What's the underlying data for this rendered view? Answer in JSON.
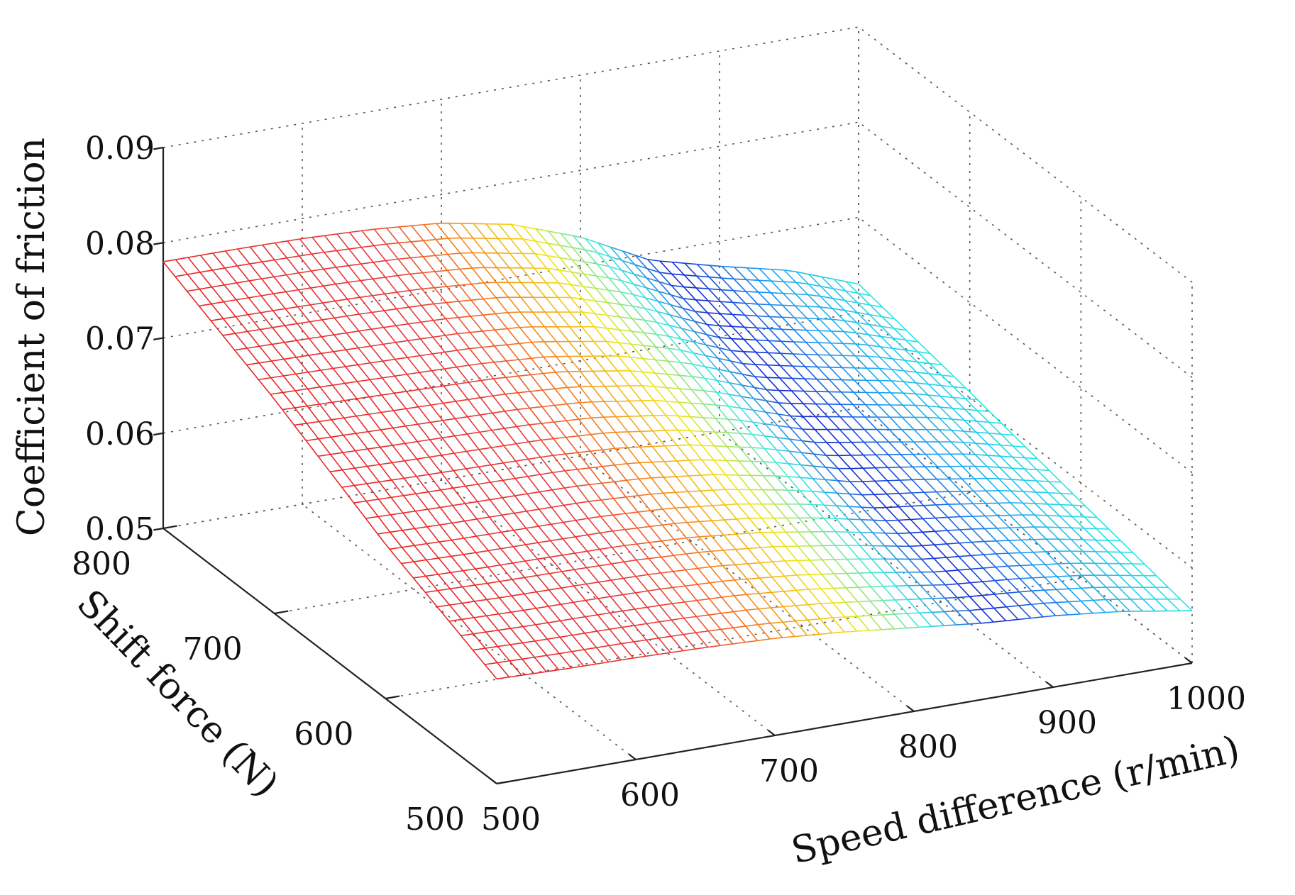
{
  "chart_data": {
    "type": "surface",
    "title": "",
    "xlabel": "Speed difference (r/min)",
    "ylabel": "Shift force (N)",
    "zlabel": "Coefficient of friction",
    "xlim": [
      500,
      1000
    ],
    "ylim": [
      500,
      800
    ],
    "zlim": [
      0.05,
      0.09
    ],
    "xticks": [
      "500",
      "600",
      "700",
      "800",
      "900",
      "1000"
    ],
    "yticks": [
      "500",
      "600",
      "700",
      "800"
    ],
    "zticks": [
      "0.05",
      "0.06",
      "0.07",
      "0.08",
      "0.09"
    ],
    "grid": true,
    "colormap": "jet",
    "colormap_note": "mesh colour varies with speed difference: red at 500 r/min to blue near 850 r/min, cyan at 1000 r/min",
    "surface_x": [
      500,
      550,
      600,
      650,
      700,
      750,
      800,
      850,
      900,
      950,
      1000
    ],
    "surface_y": [
      500,
      600,
      700,
      800
    ],
    "surface_z": [
      [
        0.061,
        0.0608,
        0.0607,
        0.0605,
        0.0602,
        0.0596,
        0.0588,
        0.058,
        0.0575,
        0.0567,
        0.0555
      ],
      [
        0.0662,
        0.066,
        0.0659,
        0.0658,
        0.0654,
        0.0646,
        0.0633,
        0.0616,
        0.0607,
        0.0596,
        0.058
      ],
      [
        0.0725,
        0.0723,
        0.0721,
        0.0719,
        0.0714,
        0.0702,
        0.0682,
        0.0655,
        0.064,
        0.0626,
        0.0606
      ],
      [
        0.078,
        0.078,
        0.0779,
        0.0776,
        0.077,
        0.0756,
        0.073,
        0.0693,
        0.0674,
        0.0657,
        0.063
      ]
    ]
  }
}
